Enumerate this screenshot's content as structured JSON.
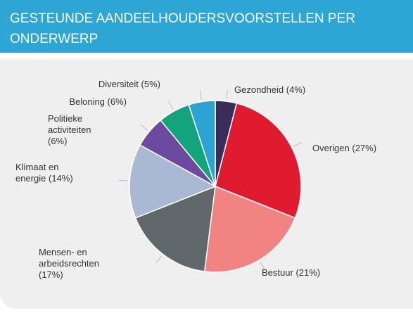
{
  "chart_data": {
    "type": "pie",
    "title": "GESTEUNDE AANDEELHOUDERSVOORSTELLEN PER ONDERWERP",
    "categories": [
      "Gezondheid",
      "Overigen",
      "Bestuur",
      "Mensen- en arbeidsrechten",
      "Klimaat en energie",
      "Politieke activiteiten",
      "Beloning",
      "Diversiteit"
    ],
    "values": [
      4,
      27,
      21,
      17,
      14,
      6,
      6,
      5
    ],
    "value_labels": [
      "(4%)",
      "(27%)",
      "(21%)",
      "(17%)",
      "(14%)",
      "(6%)",
      "(6%)",
      "(5%)"
    ],
    "colors": [
      "#3b2d5a",
      "#e11b2f",
      "#f28383",
      "#61686b",
      "#a9b8d3",
      "#6b4a9f",
      "#13a47c",
      "#2ba4d4"
    ]
  }
}
